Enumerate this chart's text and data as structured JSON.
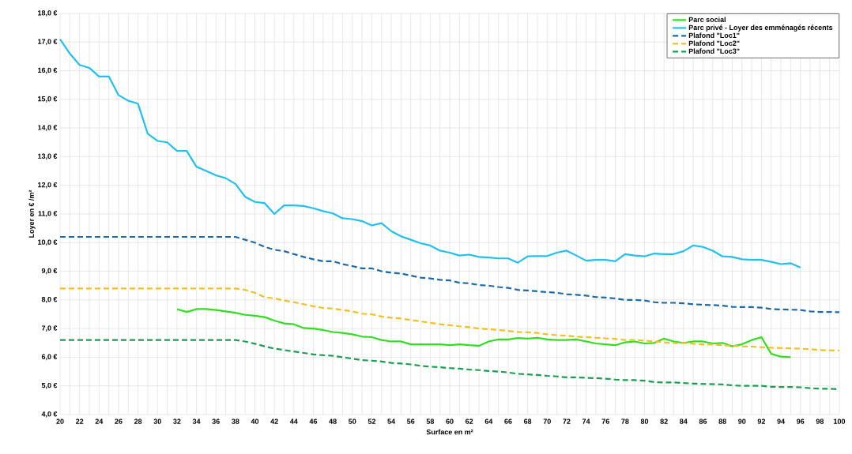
{
  "chart_data": {
    "type": "line",
    "xlabel": "Surface en m²",
    "ylabel": "Loyer en € /m²",
    "x": [
      20,
      21,
      22,
      23,
      24,
      25,
      26,
      27,
      28,
      29,
      30,
      31,
      32,
      33,
      34,
      35,
      36,
      37,
      38,
      39,
      40,
      41,
      42,
      43,
      44,
      45,
      46,
      47,
      48,
      49,
      50,
      51,
      52,
      53,
      54,
      55,
      56,
      57,
      58,
      59,
      60,
      61,
      62,
      63,
      64,
      65,
      66,
      67,
      68,
      69,
      70,
      71,
      72,
      73,
      74,
      75,
      76,
      77,
      78,
      79,
      80,
      81,
      82,
      83,
      84,
      85,
      86,
      87,
      88,
      89,
      90,
      91,
      92,
      93,
      94,
      95,
      96,
      97,
      98,
      99,
      100
    ],
    "xlim": [
      20,
      100
    ],
    "xticks": [
      20,
      {
        "value": 21,
        "label": null
      },
      22,
      {
        "value": 23,
        "label": null
      },
      24,
      {
        "value": 25,
        "label": null
      },
      26,
      {
        "value": 27,
        "label": null
      },
      28,
      {
        "value": 29,
        "label": null
      },
      30,
      {
        "value": 31,
        "label": null
      },
      32,
      {
        "value": 33,
        "label": null
      },
      34,
      {
        "value": 35,
        "label": null
      },
      36,
      {
        "value": 37,
        "label": null
      },
      38,
      {
        "value": 39,
        "label": null
      },
      40,
      {
        "value": 41,
        "label": null
      },
      42,
      {
        "value": 43,
        "label": null
      },
      44,
      {
        "value": 45,
        "label": null
      },
      46,
      {
        "value": 47,
        "label": null
      },
      48,
      {
        "value": 49,
        "label": null
      },
      50,
      {
        "value": 51,
        "label": null
      },
      52,
      {
        "value": 53,
        "label": null
      },
      54,
      {
        "value": 55,
        "label": null
      },
      56,
      {
        "value": 57,
        "label": null
      },
      58,
      {
        "value": 59,
        "label": null
      },
      60,
      {
        "value": 61,
        "label": null
      },
      62,
      {
        "value": 63,
        "label": null
      },
      64,
      {
        "value": 65,
        "label": null
      },
      66,
      {
        "value": 67,
        "label": null
      },
      68,
      {
        "value": 69,
        "label": null
      },
      70,
      {
        "value": 71,
        "label": null
      },
      72,
      {
        "value": 73,
        "label": null
      },
      74,
      {
        "value": 75,
        "label": null
      },
      76,
      {
        "value": 77,
        "label": null
      },
      78,
      {
        "value": 79,
        "label": null
      },
      80,
      {
        "value": 81,
        "label": null
      },
      82,
      {
        "value": 83,
        "label": null
      },
      84,
      {
        "value": 85,
        "label": null
      },
      86,
      {
        "value": 87,
        "label": null
      },
      88,
      {
        "value": 89,
        "label": null
      },
      90,
      {
        "value": 91,
        "label": null
      },
      92,
      {
        "value": 93,
        "label": null
      },
      94,
      {
        "value": 95,
        "label": null
      },
      96,
      {
        "value": 97,
        "label": null
      },
      98,
      {
        "value": 99,
        "label": null
      },
      100
    ],
    "ylim": [
      4,
      18
    ],
    "yticks": [
      {
        "value": 4,
        "label": "4,0 €"
      },
      {
        "value": 5,
        "label": "5,0 €"
      },
      {
        "value": 6,
        "label": "6,0 €"
      },
      {
        "value": 7,
        "label": "7,0 €"
      },
      {
        "value": 8,
        "label": "8,0 €"
      },
      {
        "value": 9,
        "label": "9,0 €"
      },
      {
        "value": 10,
        "label": "10,0 €"
      },
      {
        "value": 11,
        "label": "11,0 €"
      },
      {
        "value": 12,
        "label": "12,0 €"
      },
      {
        "value": 13,
        "label": "13,0 €"
      },
      {
        "value": 14,
        "label": "14,0 €"
      },
      {
        "value": 15,
        "label": "15,0 €"
      },
      {
        "value": 16,
        "label": "16,0 €"
      },
      {
        "value": 17,
        "label": "17,0 €"
      },
      {
        "value": 18,
        "label": "18,0 €"
      }
    ],
    "grid": true,
    "legend": "top right",
    "series": [
      {
        "name": "Parc social",
        "color": "#33dd22",
        "line_style": "solid",
        "values": [
          null,
          null,
          null,
          null,
          null,
          null,
          null,
          null,
          null,
          null,
          null,
          null,
          7.68,
          7.58,
          7.68,
          7.68,
          7.65,
          7.6,
          7.55,
          7.48,
          7.45,
          7.4,
          7.28,
          7.18,
          7.15,
          7.02,
          7.0,
          6.95,
          6.88,
          6.85,
          6.8,
          6.72,
          6.7,
          6.6,
          6.55,
          6.55,
          6.45,
          6.45,
          6.45,
          6.45,
          6.42,
          6.45,
          6.42,
          6.4,
          6.55,
          6.62,
          6.62,
          6.67,
          6.65,
          6.68,
          6.62,
          6.6,
          6.6,
          6.62,
          6.55,
          6.48,
          6.45,
          6.42,
          6.52,
          6.55,
          6.48,
          6.5,
          6.65,
          6.55,
          6.5,
          6.55,
          6.55,
          6.48,
          6.5,
          6.38,
          6.45,
          6.6,
          6.7,
          6.12,
          6.02,
          6.0,
          null,
          null,
          null,
          null,
          null
        ]
      },
      {
        "name": "Parc privé - Loyer des emménagés récents",
        "color": "#22c0ee",
        "line_style": "solid",
        "values": [
          17.1,
          16.6,
          16.2,
          16.1,
          15.8,
          15.8,
          15.15,
          14.95,
          14.85,
          13.8,
          13.55,
          13.5,
          13.2,
          13.2,
          12.65,
          12.5,
          12.35,
          12.25,
          12.05,
          11.6,
          11.42,
          11.38,
          11.0,
          11.3,
          11.3,
          11.28,
          11.2,
          11.1,
          11.02,
          10.85,
          10.82,
          10.75,
          10.6,
          10.68,
          10.4,
          10.22,
          10.1,
          9.98,
          9.9,
          9.72,
          9.65,
          9.55,
          9.58,
          9.5,
          9.48,
          9.45,
          9.45,
          9.3,
          9.52,
          9.53,
          9.53,
          9.65,
          9.72,
          9.55,
          9.37,
          9.4,
          9.4,
          9.35,
          9.6,
          9.55,
          9.52,
          9.62,
          9.6,
          9.6,
          9.7,
          9.9,
          9.85,
          9.72,
          9.52,
          9.5,
          9.42,
          9.4,
          9.4,
          9.33,
          9.25,
          9.28,
          9.13,
          null,
          null,
          null,
          null
        ]
      },
      {
        "name": "Plafond \"Loc1\"",
        "color": "#1a6aaa",
        "line_style": "dashed",
        "values": [
          10.2,
          10.2,
          10.2,
          10.2,
          10.2,
          10.2,
          10.2,
          10.2,
          10.2,
          10.2,
          10.2,
          10.2,
          10.2,
          10.2,
          10.2,
          10.2,
          10.2,
          10.2,
          10.2,
          10.1,
          10.0,
          9.85,
          9.75,
          9.7,
          9.6,
          9.5,
          9.42,
          9.35,
          9.35,
          9.25,
          9.18,
          9.1,
          9.1,
          9.0,
          8.95,
          8.92,
          8.85,
          8.78,
          8.75,
          8.7,
          8.68,
          8.6,
          8.58,
          8.52,
          8.5,
          8.45,
          8.42,
          8.35,
          8.33,
          8.3,
          8.27,
          8.25,
          8.2,
          8.18,
          8.15,
          8.1,
          8.08,
          8.05,
          8.0,
          8.0,
          7.98,
          7.92,
          7.9,
          7.9,
          7.88,
          7.85,
          7.83,
          7.82,
          7.8,
          7.76,
          7.75,
          7.75,
          7.73,
          7.68,
          7.67,
          7.66,
          7.65,
          7.6,
          7.58,
          7.58,
          7.57
        ]
      },
      {
        "name": "Plafond \"Loc2\"",
        "color": "#f5bf20",
        "line_style": "dashed",
        "values": [
          8.4,
          8.4,
          8.4,
          8.4,
          8.4,
          8.4,
          8.4,
          8.4,
          8.4,
          8.4,
          8.4,
          8.4,
          8.4,
          8.4,
          8.4,
          8.4,
          8.4,
          8.4,
          8.4,
          8.35,
          8.25,
          8.1,
          8.05,
          7.98,
          7.92,
          7.85,
          7.78,
          7.72,
          7.7,
          7.65,
          7.6,
          7.52,
          7.5,
          7.42,
          7.38,
          7.35,
          7.3,
          7.25,
          7.2,
          7.15,
          7.12,
          7.08,
          7.05,
          7.0,
          6.98,
          6.95,
          6.92,
          6.88,
          6.87,
          6.85,
          6.8,
          6.77,
          6.75,
          6.72,
          6.7,
          6.68,
          6.66,
          6.64,
          6.6,
          6.6,
          6.58,
          6.55,
          6.52,
          6.5,
          6.5,
          6.47,
          6.45,
          6.44,
          6.42,
          6.4,
          6.38,
          6.37,
          6.35,
          6.33,
          6.32,
          6.31,
          6.3,
          6.28,
          6.25,
          6.24,
          6.23
        ]
      },
      {
        "name": "Plafond \"Loc3\"",
        "color": "#1a9e50",
        "line_style": "dashed",
        "values": [
          6.6,
          6.6,
          6.6,
          6.6,
          6.6,
          6.6,
          6.6,
          6.6,
          6.6,
          6.6,
          6.6,
          6.6,
          6.6,
          6.6,
          6.6,
          6.6,
          6.6,
          6.6,
          6.6,
          6.55,
          6.47,
          6.38,
          6.3,
          6.25,
          6.2,
          6.15,
          6.1,
          6.07,
          6.05,
          6.0,
          5.95,
          5.9,
          5.88,
          5.85,
          5.8,
          5.78,
          5.75,
          5.7,
          5.67,
          5.65,
          5.62,
          5.6,
          5.57,
          5.55,
          5.52,
          5.5,
          5.47,
          5.42,
          5.4,
          5.38,
          5.35,
          5.33,
          5.3,
          5.3,
          5.28,
          5.27,
          5.25,
          5.22,
          5.2,
          5.2,
          5.18,
          5.13,
          5.12,
          5.12,
          5.1,
          5.08,
          5.07,
          5.06,
          5.05,
          5.02,
          5.0,
          5.0,
          5.0,
          4.97,
          4.96,
          4.96,
          4.95,
          4.92,
          4.9,
          4.9,
          4.88
        ]
      }
    ]
  }
}
